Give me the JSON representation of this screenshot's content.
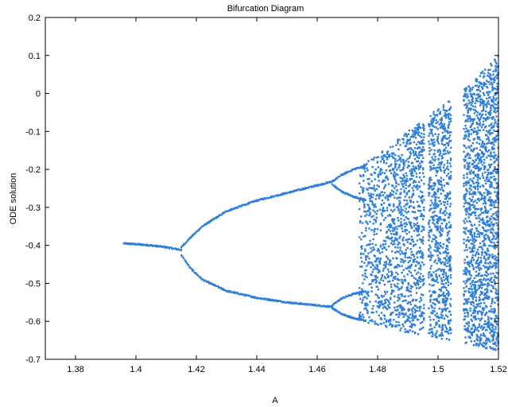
{
  "chart_data": {
    "type": "scatter",
    "title": "Bifurcation Diagram",
    "xlabel": "A",
    "ylabel": "ODE solution",
    "xlim": [
      1.37,
      1.52
    ],
    "ylim": [
      -0.7,
      0.2
    ],
    "x_ticks": [
      1.38,
      1.4,
      1.42,
      1.44,
      1.46,
      1.48,
      1.5,
      1.52
    ],
    "x_tick_labels": [
      "1.38",
      "1.4",
      "1.42",
      "1.44",
      "1.46",
      "1.48",
      "1.5",
      "1.52"
    ],
    "y_ticks": [
      -0.7,
      -0.6,
      -0.5,
      -0.4,
      -0.3,
      -0.2,
      -0.1,
      0,
      0.1,
      0.2
    ],
    "y_tick_labels": [
      "-0.7",
      "-0.6",
      "-0.5",
      "-0.4",
      "-0.3",
      "-0.2",
      "-0.1",
      "0",
      "0.1",
      "0.2"
    ],
    "grid": false,
    "marker_color": "#2f7fd9",
    "branches": [
      {
        "name": "period-1",
        "points": [
          [
            1.396,
            -0.395
          ],
          [
            1.4,
            -0.397
          ],
          [
            1.405,
            -0.4
          ],
          [
            1.41,
            -0.405
          ],
          [
            1.415,
            -0.412
          ]
        ]
      },
      {
        "name": "period-2-upper",
        "points": [
          [
            1.415,
            -0.405
          ],
          [
            1.418,
            -0.38
          ],
          [
            1.422,
            -0.35
          ],
          [
            1.43,
            -0.31
          ],
          [
            1.44,
            -0.282
          ],
          [
            1.45,
            -0.262
          ],
          [
            1.46,
            -0.242
          ],
          [
            1.465,
            -0.232
          ]
        ]
      },
      {
        "name": "period-2-lower",
        "points": [
          [
            1.415,
            -0.425
          ],
          [
            1.418,
            -0.46
          ],
          [
            1.422,
            -0.49
          ],
          [
            1.43,
            -0.52
          ],
          [
            1.44,
            -0.538
          ],
          [
            1.45,
            -0.55
          ],
          [
            1.46,
            -0.558
          ],
          [
            1.465,
            -0.562
          ]
        ]
      },
      {
        "name": "period-4-upper-a",
        "points": [
          [
            1.465,
            -0.232
          ],
          [
            1.468,
            -0.215
          ],
          [
            1.472,
            -0.2
          ],
          [
            1.476,
            -0.19
          ]
        ]
      },
      {
        "name": "period-4-upper-b",
        "points": [
          [
            1.465,
            -0.24
          ],
          [
            1.468,
            -0.258
          ],
          [
            1.472,
            -0.272
          ],
          [
            1.476,
            -0.28
          ]
        ]
      },
      {
        "name": "period-4-lower-a",
        "points": [
          [
            1.465,
            -0.558
          ],
          [
            1.468,
            -0.54
          ],
          [
            1.472,
            -0.528
          ],
          [
            1.476,
            -0.52
          ]
        ]
      },
      {
        "name": "period-4-lower-b",
        "points": [
          [
            1.465,
            -0.565
          ],
          [
            1.468,
            -0.58
          ],
          [
            1.472,
            -0.592
          ],
          [
            1.476,
            -0.598
          ]
        ]
      }
    ],
    "chaos_region": {
      "x_range": [
        1.474,
        1.52
      ],
      "upper_envelope": [
        [
          1.474,
          -0.195
        ],
        [
          1.48,
          -0.16
        ],
        [
          1.49,
          -0.1
        ],
        [
          1.5,
          -0.04
        ],
        [
          1.51,
          0.02
        ],
        [
          1.52,
          0.1
        ]
      ],
      "lower_envelope": [
        [
          1.474,
          -0.6
        ],
        [
          1.48,
          -0.61
        ],
        [
          1.49,
          -0.63
        ],
        [
          1.5,
          -0.645
        ],
        [
          1.51,
          -0.66
        ],
        [
          1.52,
          -0.68
        ]
      ],
      "windows": [
        [
          1.4955,
          1.4968
        ],
        [
          1.5045,
          1.5085
        ]
      ]
    }
  }
}
